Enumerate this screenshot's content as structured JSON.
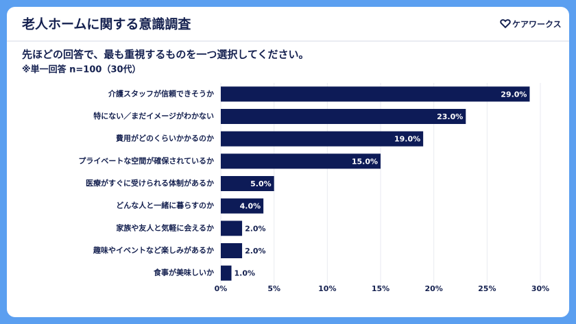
{
  "header": {
    "title": "老人ホームに関する意識調査",
    "logo": "ケアワークス"
  },
  "chart_data": {
    "type": "bar",
    "orientation": "horizontal",
    "title": "先ほどの回答で、最も重視するものを一つ選択してください。",
    "subtitle": "※単一回答 n=100（30代）",
    "categories": [
      "介護スタッフが信頼できそうか",
      "特にない／まだイメージがわかない",
      "費用がどのくらいかかるのか",
      "プライベートな空間が確保されているか",
      "医療がすぐに受けられる体制があるか",
      "どんな人と一緒に暮らすのか",
      "家族や友人と気軽に会えるか",
      "趣味やイベントなど楽しみがあるか",
      "食事が美味しいか"
    ],
    "values": [
      29,
      23,
      19,
      15,
      5,
      4,
      2,
      2,
      1
    ],
    "value_labels": [
      "29.0%",
      "23.0%",
      "19.0%",
      "15.0%",
      "5.0%",
      "4.0%",
      "2.0%",
      "2.0%",
      "1.0%"
    ],
    "color": "#0d1b57",
    "xlim": [
      0,
      30
    ],
    "xticks": [
      {
        "value": 0,
        "label": "0%"
      },
      {
        "value": 5,
        "label": "5%"
      },
      {
        "value": 10,
        "label": "10%"
      },
      {
        "value": 15,
        "label": "15%"
      },
      {
        "value": 20,
        "label": "20%"
      },
      {
        "value": 25,
        "label": "25%"
      },
      {
        "value": 30,
        "label": "30%"
      }
    ],
    "grid": true
  }
}
